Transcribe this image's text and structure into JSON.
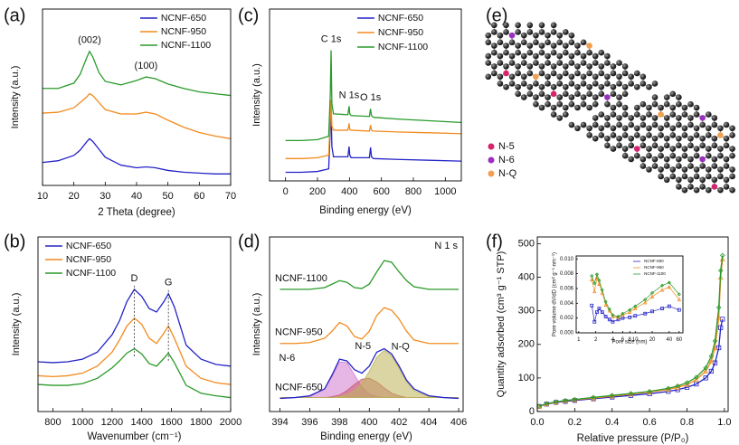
{
  "chart_data": [
    {
      "type": "line",
      "panel_label": "(a)",
      "xlabel": "2 Theta (degree)",
      "ylabel": "Intensity (a.u.)",
      "xlim": [
        10,
        70
      ],
      "ylim": [
        0,
        10
      ],
      "xticks": [
        10,
        20,
        30,
        40,
        50,
        60,
        70
      ],
      "legend": "upper right",
      "x": [
        10,
        15,
        20,
        22,
        24,
        25,
        26,
        28,
        30,
        35,
        40,
        43,
        46,
        50,
        55,
        60,
        65,
        70
      ],
      "series": [
        {
          "name": "NCNF-650",
          "color": "#2323c8",
          "values": [
            1.3,
            1.4,
            1.7,
            2.0,
            2.45,
            2.65,
            2.5,
            2.05,
            1.6,
            1.15,
            1.0,
            1.05,
            1.0,
            0.85,
            0.75,
            0.7,
            0.65,
            0.65
          ]
        },
        {
          "name": "NCNF-950",
          "color": "#f28a1e",
          "values": [
            4.1,
            4.15,
            4.4,
            4.7,
            5.0,
            5.2,
            5.1,
            4.7,
            4.3,
            4.05,
            4.05,
            4.15,
            4.05,
            3.7,
            3.3,
            3.0,
            2.8,
            2.65
          ]
        },
        {
          "name": "NCNF-1100",
          "color": "#2a9a2a",
          "values": [
            5.5,
            5.5,
            5.8,
            6.3,
            7.2,
            7.6,
            7.3,
            6.4,
            5.9,
            5.7,
            5.95,
            6.15,
            6.05,
            5.75,
            5.5,
            5.3,
            5.2,
            5.1
          ]
        }
      ],
      "annotations": [
        {
          "text": "(002)",
          "x": 25
        },
        {
          "text": "(100)",
          "x": 43
        }
      ]
    },
    {
      "type": "line",
      "panel_label": "(b)",
      "xlabel": "Wavenumber (cm⁻¹)",
      "ylabel": "Intensity (a.u.)",
      "xlim": [
        700,
        2000
      ],
      "ylim": [
        0,
        10
      ],
      "xticks": [
        800,
        1000,
        1200,
        1400,
        1600,
        1800,
        2000
      ],
      "legend": "upper left",
      "annotation_lines": true,
      "x": [
        700,
        800,
        900,
        1000,
        1100,
        1200,
        1250,
        1300,
        1350,
        1400,
        1450,
        1500,
        1550,
        1580,
        1620,
        1700,
        1800,
        1900,
        2000
      ],
      "series": [
        {
          "name": "NCNF-650",
          "color": "#2323c8",
          "values": [
            2.85,
            2.8,
            2.85,
            3.0,
            3.4,
            4.4,
            5.2,
            6.3,
            7.0,
            6.6,
            5.9,
            5.7,
            6.3,
            6.75,
            6.0,
            3.8,
            3.0,
            2.7,
            2.6
          ]
        },
        {
          "name": "NCNF-950",
          "color": "#f28a1e",
          "values": [
            2.05,
            2.0,
            2.05,
            2.2,
            2.6,
            3.4,
            4.1,
            4.9,
            5.35,
            5.0,
            4.2,
            3.9,
            4.5,
            4.9,
            4.2,
            2.6,
            1.9,
            1.65,
            1.55
          ]
        },
        {
          "name": "NCNF-1100",
          "color": "#2a9a2a",
          "values": [
            1.55,
            1.5,
            1.5,
            1.6,
            1.9,
            2.5,
            2.9,
            3.35,
            3.6,
            3.3,
            2.75,
            2.6,
            3.05,
            3.35,
            2.8,
            1.5,
            1.05,
            0.9,
            0.8
          ]
        }
      ],
      "annotations": [
        {
          "text": "D",
          "x": 1350
        },
        {
          "text": "G",
          "x": 1580
        }
      ]
    },
    {
      "type": "line",
      "panel_label": "(c)",
      "xlabel": "Binding energy (eV)",
      "ylabel": "Intensity (a.u.)",
      "xlim": [
        -100,
        1100
      ],
      "ylim": [
        0,
        10
      ],
      "xticks": [
        0,
        200,
        400,
        600,
        800,
        1000
      ],
      "legend": "upper right",
      "x": [
        0,
        100,
        200,
        270,
        280,
        285,
        290,
        300,
        390,
        398,
        402,
        410,
        525,
        532,
        538,
        550,
        700,
        900,
        1100
      ],
      "series": [
        {
          "name": "NCNF-650",
          "color": "#2323c8",
          "values": [
            0.5,
            0.5,
            0.55,
            0.7,
            3.0,
            4.3,
            2.0,
            1.4,
            1.4,
            2.0,
            1.5,
            1.35,
            1.35,
            1.95,
            1.4,
            1.3,
            1.25,
            1.2,
            1.15
          ]
        },
        {
          "name": "NCNF-950",
          "color": "#f28a1e",
          "values": [
            1.3,
            1.3,
            1.35,
            1.5,
            3.5,
            4.7,
            3.2,
            2.95,
            2.95,
            3.35,
            3.0,
            2.95,
            2.9,
            3.25,
            2.95,
            2.9,
            2.85,
            2.8,
            2.75
          ]
        },
        {
          "name": "NCNF-1100",
          "color": "#2a9a2a",
          "values": [
            2.35,
            2.35,
            2.4,
            2.6,
            5.0,
            7.6,
            4.5,
            3.9,
            3.85,
            4.35,
            3.9,
            3.8,
            3.75,
            4.2,
            3.8,
            3.7,
            3.6,
            3.5,
            3.4
          ]
        }
      ],
      "annotations": [
        {
          "text": "C 1s",
          "x": 285
        },
        {
          "text": "N 1s",
          "x": 398
        },
        {
          "text": "O 1s",
          "x": 532
        }
      ]
    },
    {
      "type": "line",
      "panel_label": "(d)",
      "xlabel": "Binding energy (eV)",
      "ylabel": "Intensity (a.u.)",
      "note": "N 1 s",
      "xlim": [
        393.3,
        406.3
      ],
      "ylim": [
        0,
        10
      ],
      "xticks": [
        394,
        396,
        398,
        400,
        402,
        404,
        406
      ],
      "legend": "inline",
      "x": [
        394,
        395,
        396,
        397,
        397.5,
        398,
        398.5,
        399,
        399.5,
        400,
        400.5,
        401,
        401.5,
        402,
        402.5,
        403,
        404,
        405,
        406
      ],
      "components": [
        {
          "name": "N-6",
          "color": "#d27ad0",
          "values": [
            0.8,
            0.8,
            0.85,
            1.3,
            2.0,
            2.85,
            2.8,
            2.1,
            1.4,
            1.0,
            0.85,
            0.8,
            0.8,
            0.8,
            0.8,
            0.8,
            0.8,
            0.8,
            0.8
          ]
        },
        {
          "name": "N-5",
          "color": "#c85a6a",
          "values": [
            0.8,
            0.8,
            0.8,
            0.8,
            0.85,
            0.95,
            1.2,
            1.55,
            1.85,
            1.9,
            1.7,
            1.35,
            1.05,
            0.9,
            0.8,
            0.8,
            0.8,
            0.8,
            0.8
          ]
        },
        {
          "name": "N-Q",
          "color": "#bdb35a",
          "values": [
            0.8,
            0.8,
            0.8,
            0.8,
            0.8,
            0.85,
            0.95,
            1.2,
            1.6,
            2.3,
            3.1,
            3.5,
            3.2,
            2.5,
            1.7,
            1.2,
            0.85,
            0.8,
            0.8
          ]
        }
      ],
      "series": [
        {
          "name": "NCNF-650",
          "color": "#2323c8",
          "values": [
            0.75,
            0.8,
            0.9,
            1.3,
            2.1,
            3.0,
            2.9,
            2.4,
            2.2,
            2.6,
            3.4,
            3.6,
            3.3,
            2.6,
            1.8,
            1.3,
            0.9,
            0.8,
            0.75
          ]
        },
        {
          "name": "NCNF-950",
          "color": "#f28a1e",
          "values": [
            3.9,
            3.9,
            3.95,
            4.2,
            4.6,
            5.1,
            4.9,
            4.3,
            4.15,
            4.6,
            5.5,
            5.95,
            5.8,
            5.3,
            4.6,
            4.1,
            3.9,
            3.9,
            3.9
          ]
        },
        {
          "name": "NCNF-1100",
          "color": "#2a9a2a",
          "values": [
            7.0,
            7.0,
            7.0,
            7.1,
            7.3,
            7.5,
            7.4,
            7.1,
            7.05,
            7.3,
            8.0,
            8.65,
            8.55,
            8.0,
            7.5,
            7.15,
            7.0,
            7.0,
            7.0
          ]
        }
      ]
    },
    {
      "type": "structure",
      "panel_label": "(e)",
      "legend": [
        {
          "name": "N-5",
          "color": "#d6246e"
        },
        {
          "name": "N-6",
          "color": "#9b30c0"
        },
        {
          "name": "N-Q",
          "color": "#f0a050"
        }
      ]
    },
    {
      "type": "line",
      "panel_label": "(f)",
      "xlabel": "Relative pressure (P/P₀)",
      "ylabel": "Quantity adsorbed (cm³ g⁻¹ STP)",
      "xlim": [
        0,
        1.02
      ],
      "ylim": [
        0,
        520
      ],
      "xticks": [
        {
          "value": 0,
          "label": "0.0"
        },
        0.2,
        0.4,
        0.6,
        0.8,
        {
          "value": 1,
          "label": "1.0"
        }
      ],
      "yticks": [
        0,
        100,
        200,
        300,
        400,
        500
      ],
      "x": [
        0.01,
        0.05,
        0.1,
        0.15,
        0.2,
        0.3,
        0.4,
        0.5,
        0.6,
        0.7,
        0.75,
        0.8,
        0.85,
        0.9,
        0.93,
        0.95,
        0.97,
        0.98,
        0.99
      ],
      "series": [
        {
          "color": "#2323c8",
          "marker": "square",
          "values": [
            15,
            22,
            27,
            30,
            33,
            38,
            43,
            48,
            53,
            60,
            65,
            72,
            82,
            100,
            120,
            145,
            190,
            250,
            275
          ]
        },
        {
          "color": "#f28a1e",
          "marker": "triangle",
          "values": [
            15,
            23,
            28,
            32,
            35,
            40,
            46,
            52,
            58,
            66,
            72,
            80,
            95,
            120,
            150,
            190,
            280,
            400,
            455
          ]
        },
        {
          "color": "#2a9a2a",
          "marker": "diamond",
          "values": [
            16,
            24,
            29,
            33,
            36,
            42,
            48,
            54,
            60,
            69,
            76,
            86,
            102,
            130,
            165,
            210,
            310,
            420,
            465
          ]
        }
      ]
    },
    {
      "type": "line",
      "xlabel": "Pore size (nm)",
      "ylabel": "Pore volume dV/dD (cm³ g⁻¹ nm⁻¹)",
      "xscale": "log",
      "legend": "upper right",
      "xlim": [
        0.9,
        70
      ],
      "ylim": [
        0,
        0.0104
      ],
      "xticks": [
        1,
        2,
        4,
        6,
        8,
        10,
        20,
        40,
        60
      ],
      "yticks": [
        {
          "value": 0,
          "label": "0.000"
        },
        0.002,
        0.004,
        0.006,
        0.008,
        {
          "value": 0.01,
          "label": "0.010"
        }
      ],
      "x": [
        1.7,
        1.9,
        2.1,
        2.3,
        2.6,
        3,
        3.5,
        4,
        5,
        6,
        8,
        10,
        15,
        20,
        30,
        40,
        60
      ],
      "series": [
        {
          "name": "NCNF-650",
          "color": "#2323c8",
          "marker": "square",
          "values": [
            0.0037,
            0.0015,
            0.0028,
            0.0033,
            0.0028,
            0.0022,
            0.0018,
            0.0015,
            0.0018,
            0.002,
            0.0021,
            0.0023,
            0.0026,
            0.0029,
            0.0033,
            0.0036,
            0.0031
          ]
        },
        {
          "name": "NCNF-950",
          "color": "#f28a1e",
          "marker": "triangle",
          "values": [
            0.0072,
            0.0056,
            0.0074,
            0.0066,
            0.0054,
            0.0038,
            0.003,
            0.0022,
            0.0021,
            0.0024,
            0.0028,
            0.0033,
            0.0041,
            0.0049,
            0.0058,
            0.0062,
            0.0045
          ]
        },
        {
          "name": "NCNF-1100",
          "color": "#2a9a2a",
          "marker": "diamond",
          "values": [
            0.0077,
            0.0067,
            0.0079,
            0.0071,
            0.0058,
            0.0042,
            0.0032,
            0.0024,
            0.0022,
            0.0026,
            0.0031,
            0.0036,
            0.0045,
            0.0054,
            0.0064,
            0.0068,
            0.0052
          ]
        }
      ]
    }
  ]
}
